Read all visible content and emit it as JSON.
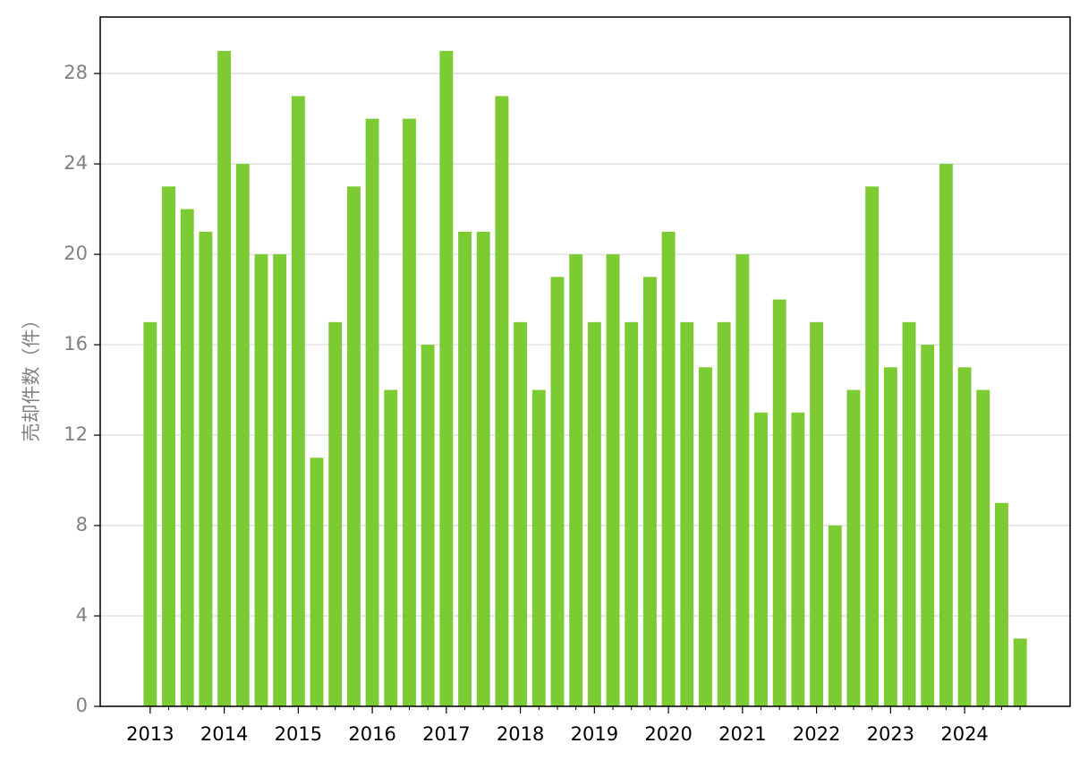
{
  "chart_data": {
    "type": "bar",
    "y_label": "売却件数（件）",
    "categories": [
      "2013",
      null,
      null,
      null,
      "2014",
      null,
      null,
      null,
      "2015",
      null,
      null,
      null,
      "2016",
      null,
      null,
      null,
      "2017",
      null,
      null,
      null,
      "2018",
      null,
      null,
      null,
      "2019",
      null,
      null,
      null,
      "2020",
      null,
      null,
      null,
      "2021",
      null,
      null,
      null,
      "2022",
      null,
      null,
      null,
      "2023",
      null,
      null,
      null,
      "2024",
      null,
      null,
      null
    ],
    "values": [
      17,
      23,
      22,
      21,
      29,
      24,
      20,
      20,
      27,
      11,
      17,
      23,
      26,
      14,
      26,
      16,
      29,
      21,
      21,
      27,
      17,
      14,
      19,
      20,
      17,
      20,
      17,
      19,
      21,
      17,
      15,
      17,
      20,
      13,
      18,
      13,
      17,
      8,
      14,
      23,
      15,
      17,
      16,
      24,
      15,
      14,
      9,
      3
    ],
    "color": "#7dcb32",
    "ylim": [
      0,
      30.5
    ],
    "yticks": [
      0,
      4,
      8,
      12,
      16,
      20,
      24,
      28
    ],
    "grid": true
  }
}
